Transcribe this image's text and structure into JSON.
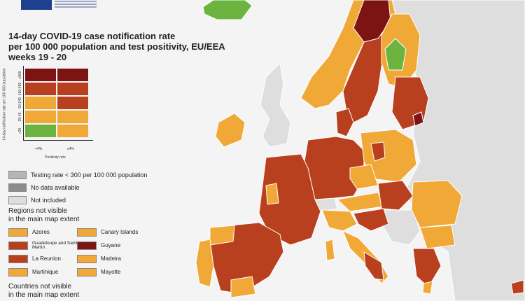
{
  "title_lines": [
    "14-day COVID-19 case notification rate",
    "per 100 000 population and test positivity, EU/EEA",
    "weeks 19 - 20"
  ],
  "colors": {
    "dark_red": "#7c1414",
    "red": "#b9401e",
    "orange": "#f0a836",
    "green": "#6cb33f",
    "testing_low": "#b5b5b5",
    "no_data": "#8c8c8c",
    "not_included": "#dedede",
    "water": "#f4f4f4",
    "eu_blue": "#1f3f8f"
  },
  "matrix": {
    "y_axis_title": "14-day notification rate per 100 000 population",
    "x_axis_title": "Positivity rate",
    "y_labels": [
      "≥500",
      "150-499",
      "50-149",
      "25-49",
      "<25"
    ],
    "x_labels": [
      "<4%",
      "≥4%"
    ],
    "cells": [
      [
        "dark_red",
        "dark_red"
      ],
      [
        "red",
        "red"
      ],
      [
        "orange",
        "red"
      ],
      [
        "orange",
        "orange"
      ],
      [
        "green",
        "orange"
      ]
    ]
  },
  "legend": [
    {
      "label": "Testing rate < 300 per 100 000 population",
      "color": "testing_low"
    },
    {
      "label": "No data available",
      "color": "no_data"
    },
    {
      "label": "Not included",
      "color": "not_included"
    }
  ],
  "regions_heading": [
    "Regions not visible",
    "in the main map extent"
  ],
  "regions": [
    {
      "label": "Azores",
      "color": "orange"
    },
    {
      "label": "Canary Islands",
      "color": "orange"
    },
    {
      "label": "Guadeloupe and Saint Martin",
      "color": "red"
    },
    {
      "label": "Guyane",
      "color": "dark_red"
    },
    {
      "label": "La Reunion",
      "color": "red"
    },
    {
      "label": "Madeira",
      "color": "orange"
    },
    {
      "label": "Martinique",
      "color": "orange"
    },
    {
      "label": "Mayotte",
      "color": "orange"
    }
  ],
  "countries_heading": [
    "Countries not visible",
    "in the main map extent"
  ]
}
